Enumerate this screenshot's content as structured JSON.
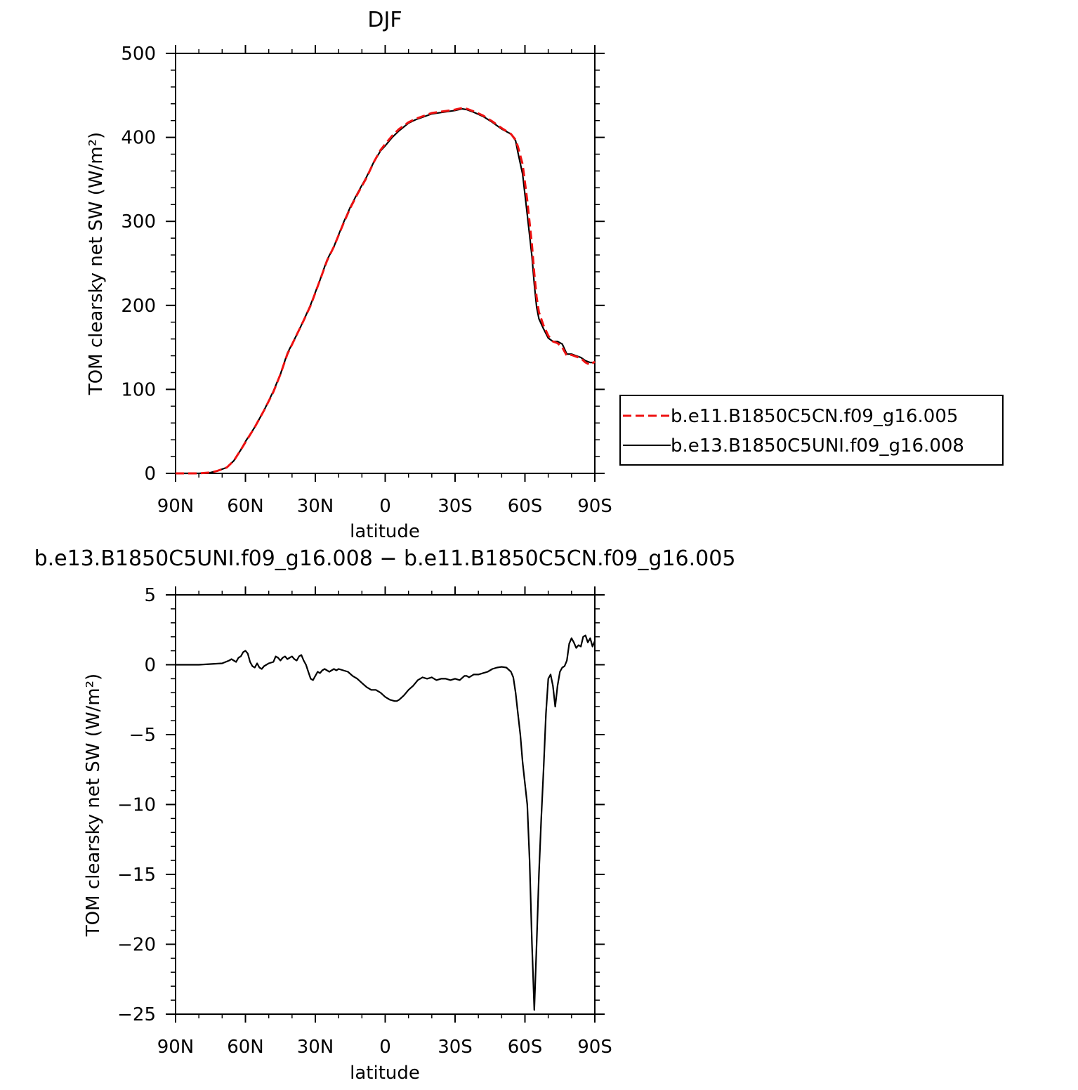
{
  "figure": {
    "top_title": "DJF",
    "bottom_title": "b.e13.B1850C5UNI.f09_g16.008 − b.e11.B1850C5CN.f09_g16.005",
    "legend": {
      "entries": [
        {
          "label": "b.e11.B1850C5CN.f09_g16.005",
          "color": "#ee1111",
          "dash": "dashed"
        },
        {
          "label": "b.e13.B1850C5UNI.f09_g16.008",
          "color": "#000000",
          "dash": "solid"
        }
      ]
    }
  },
  "chart_data": [
    {
      "type": "line",
      "title": "DJF",
      "xlabel": "latitude",
      "ylabel": "TOM clearsky net SW (W/m²)",
      "xlim": [
        90,
        -90
      ],
      "ylim": [
        0,
        500
      ],
      "grid": false,
      "legend_placement": "right",
      "x_ticks": [
        90,
        60,
        30,
        0,
        -30,
        -60,
        -90
      ],
      "x_tick_labels": [
        "90N",
        "60N",
        "30N",
        "0",
        "30S",
        "60S",
        "90S"
      ],
      "y_ticks": [
        0,
        100,
        200,
        300,
        400,
        500
      ],
      "y_tick_labels": [
        "0",
        "100",
        "200",
        "300",
        "400",
        "500"
      ],
      "series": [
        {
          "name": "b.e11.B1850C5CN.f09_g16.005",
          "color": "#ee1111",
          "dash": "dashed",
          "x": [
            90,
            85,
            80,
            75,
            72,
            68,
            65,
            62,
            60,
            56,
            52,
            48,
            45,
            42,
            38,
            35,
            32,
            28,
            25,
            22,
            18,
            15,
            12,
            8,
            5,
            2,
            0,
            -3,
            -6,
            -10,
            -13,
            -15,
            -20,
            -25,
            -30,
            -33,
            -35,
            -38,
            -42,
            -46,
            -50,
            -54,
            -56,
            -57,
            -59,
            -61,
            -63,
            -64,
            -65,
            -66,
            -68,
            -70,
            -72,
            -74,
            -76,
            -78,
            -80,
            -82,
            -84,
            -86,
            -88,
            -90
          ],
          "y": [
            0,
            0,
            0,
            1,
            3,
            7,
            15,
            28,
            37,
            55,
            75,
            97,
            118,
            142,
            165,
            182,
            200,
            230,
            253,
            270,
            297,
            316,
            332,
            352,
            370,
            385,
            392,
            402,
            410,
            418,
            422,
            424,
            429,
            431,
            433,
            435,
            434,
            431,
            426,
            419,
            411,
            404,
            397,
            389,
            368,
            325,
            272,
            238,
            210,
            192,
            176,
            164,
            157,
            155,
            150,
            140,
            141,
            139,
            137,
            132,
            129,
            133
          ]
        },
        {
          "name": "b.e13.B1850C5UNI.f09_g16.008",
          "color": "#000000",
          "dash": "solid",
          "x": [
            90,
            85,
            80,
            75,
            72,
            68,
            65,
            62,
            60,
            56,
            52,
            48,
            45,
            42,
            38,
            35,
            32,
            28,
            25,
            22,
            18,
            15,
            12,
            8,
            5,
            2,
            0,
            -3,
            -6,
            -10,
            -13,
            -15,
            -20,
            -25,
            -30,
            -33,
            -35,
            -38,
            -42,
            -46,
            -50,
            -54,
            -56,
            -57,
            -59,
            -61,
            -63,
            -64,
            -65,
            -66,
            -68,
            -70,
            -72,
            -74,
            -76,
            -78,
            -80,
            -82,
            -84,
            -86,
            -88,
            -90
          ],
          "y": [
            0,
            0,
            0,
            1,
            3,
            7,
            15,
            28,
            38,
            55,
            75,
            98,
            118,
            143,
            165,
            182,
            201,
            230,
            254,
            270,
            298,
            317,
            333,
            353,
            370,
            384,
            390,
            400,
            408,
            417,
            421,
            423,
            428,
            430,
            432,
            434,
            433,
            430,
            425,
            418,
            410,
            404,
            396,
            382,
            356,
            308,
            258,
            225,
            198,
            184,
            172,
            161,
            157,
            157,
            154,
            142,
            142,
            140,
            138,
            134,
            132,
            132
          ]
        }
      ]
    },
    {
      "type": "line",
      "title": "b.e13.B1850C5UNI.f09_g16.008 − b.e11.B1850C5CN.f09_g16.005",
      "xlabel": "latitude",
      "ylabel": "TOM clearsky net SW (W/m²)",
      "xlim": [
        90,
        -90
      ],
      "ylim": [
        -25,
        5
      ],
      "grid": false,
      "x_ticks": [
        90,
        60,
        30,
        0,
        -30,
        -60,
        -90
      ],
      "x_tick_labels": [
        "90N",
        "60N",
        "30N",
        "0",
        "30S",
        "60S",
        "90S"
      ],
      "y_ticks": [
        -25,
        -20,
        -15,
        -10,
        -5,
        0,
        5
      ],
      "y_tick_labels": [
        "−25",
        "−20",
        "−15",
        "−10",
        "−5",
        "0",
        "5"
      ],
      "series": [
        {
          "name": "b.e13.B1850C5UNI.f09_g16.008 − b.e11.B1850C5CN.f09_g16.005",
          "color": "#000000",
          "dash": "solid",
          "x": [
            90,
            80,
            75,
            70,
            67,
            66,
            65,
            64,
            63,
            62,
            61,
            60,
            59,
            58,
            57,
            56,
            55,
            54,
            53,
            52,
            50,
            48,
            47,
            46,
            45,
            44,
            43,
            42,
            41,
            40,
            39,
            38,
            37,
            36,
            35,
            34,
            33,
            32,
            31,
            30,
            29,
            28,
            27,
            26,
            25,
            24,
            23,
            22,
            21,
            20,
            18,
            16,
            14,
            12,
            10,
            8,
            6,
            4,
            2,
            0,
            -2,
            -4,
            -5,
            -6,
            -8,
            -10,
            -12,
            -14,
            -15,
            -16,
            -18,
            -20,
            -22,
            -24,
            -26,
            -28,
            -30,
            -32,
            -34,
            -35,
            -36,
            -38,
            -40,
            -42,
            -44,
            -46,
            -48,
            -50,
            -52,
            -54,
            -55,
            -56,
            -57,
            -58,
            -59,
            -60,
            -61,
            -62,
            -63,
            -64,
            -65,
            -66,
            -67,
            -68,
            -69,
            -70,
            -71,
            -72,
            -73,
            -74,
            -75,
            -76,
            -77,
            -78,
            -79,
            -80,
            -81,
            -82,
            -83,
            -84,
            -85,
            -86,
            -87,
            -88,
            -89,
            -90
          ],
          "y": [
            0,
            0,
            0.05,
            0.1,
            0.3,
            0.4,
            0.3,
            0.2,
            0.5,
            0.6,
            0.9,
            1.0,
            0.8,
            0.2,
            -0.1,
            -0.2,
            0.1,
            -0.2,
            -0.3,
            -0.1,
            0.1,
            0.2,
            0.6,
            0.5,
            0.3,
            0.5,
            0.6,
            0.4,
            0.5,
            0.6,
            0.4,
            0.3,
            0.6,
            0.7,
            0.3,
            0.0,
            -0.5,
            -1.0,
            -1.1,
            -0.8,
            -0.5,
            -0.6,
            -0.4,
            -0.3,
            -0.4,
            -0.5,
            -0.4,
            -0.3,
            -0.4,
            -0.3,
            -0.4,
            -0.5,
            -0.8,
            -1.0,
            -1.3,
            -1.6,
            -1.8,
            -1.8,
            -2.0,
            -2.3,
            -2.5,
            -2.6,
            -2.6,
            -2.5,
            -2.2,
            -1.8,
            -1.5,
            -1.1,
            -1.0,
            -0.9,
            -1.0,
            -0.9,
            -1.1,
            -1.0,
            -1.0,
            -1.1,
            -1.0,
            -1.1,
            -0.8,
            -0.8,
            -0.9,
            -0.7,
            -0.7,
            -0.6,
            -0.5,
            -0.3,
            -0.2,
            -0.15,
            -0.2,
            -0.5,
            -0.9,
            -2.0,
            -3.5,
            -5.0,
            -7.0,
            -8.5,
            -10.0,
            -14.0,
            -20.0,
            -24.7,
            -20.0,
            -15.0,
            -11.0,
            -7.5,
            -3.5,
            -1.0,
            -0.7,
            -1.5,
            -3.0,
            -1.5,
            -0.5,
            -0.2,
            -0.1,
            0.3,
            1.5,
            1.9,
            1.6,
            1.2,
            1.4,
            1.3,
            2.0,
            2.1,
            1.6,
            1.9,
            1.3,
            1.7
          ]
        }
      ]
    }
  ]
}
